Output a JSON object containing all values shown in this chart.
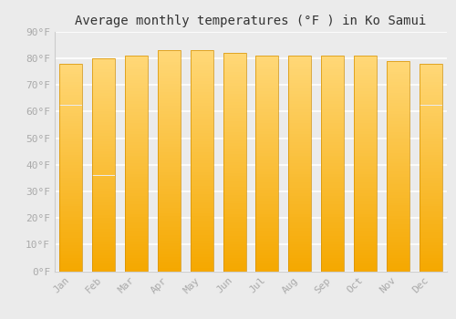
{
  "title": "Average monthly temperatures (°F ) in Ko Samui",
  "months": [
    "Jan",
    "Feb",
    "Mar",
    "Apr",
    "May",
    "Jun",
    "Jul",
    "Aug",
    "Sep",
    "Oct",
    "Nov",
    "Dec"
  ],
  "values": [
    78,
    80,
    81,
    83,
    83,
    82,
    81,
    81,
    81,
    81,
    79,
    78
  ],
  "bar_color_bottom": "#F5A800",
  "bar_color_top": "#FFD878",
  "bar_edge_color": "#D49000",
  "background_color": "#ebebeb",
  "grid_color": "#ffffff",
  "ytick_labels": [
    "0°F",
    "10°F",
    "20°F",
    "30°F",
    "40°F",
    "50°F",
    "60°F",
    "70°F",
    "80°F",
    "90°F"
  ],
  "ytick_values": [
    0,
    10,
    20,
    30,
    40,
    50,
    60,
    70,
    80,
    90
  ],
  "ylim": [
    0,
    90
  ],
  "title_fontsize": 10,
  "tick_fontsize": 8,
  "tick_color": "#aaaaaa",
  "spine_color": "#cccccc",
  "bar_width": 0.7
}
